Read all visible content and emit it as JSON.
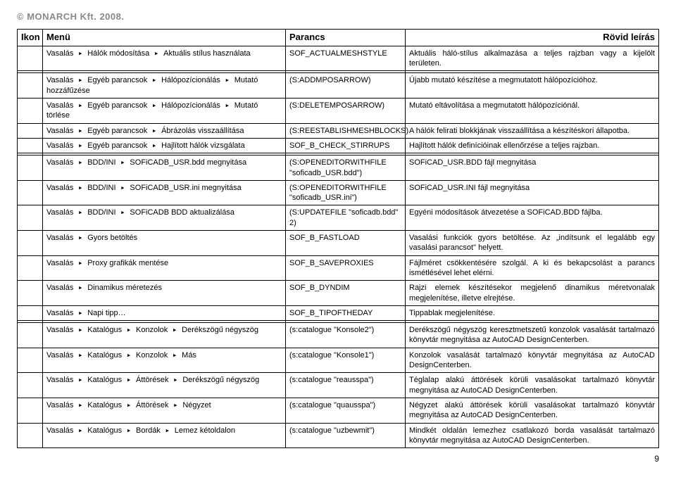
{
  "header": "© MONARCH Kft. 2008.",
  "columns": {
    "icon": "Ikon",
    "menu": "Menü",
    "parancs": "Parancs",
    "leiras": "Rövid leírás"
  },
  "groups": [
    {
      "rows": [
        {
          "menu": "Vasalás ▸ Hálók módosítása ▸ Aktuális stílus használata",
          "parancs": "SOF_ACTUALMESHSTYLE",
          "leiras": "Aktuális háló-stílus alkalmazása a teljes rajzban vagy a kijelölt területen."
        }
      ]
    },
    {
      "rows": [
        {
          "menu": "Vasalás ▸ Egyéb parancsok ▸ Hálópozícionálás ▸ Mutató hozzáfűzése",
          "parancs": "(S:ADDMPOSARROW)",
          "leiras": "Újabb mutató készítése a megmutatott hálópozícióhoz."
        },
        {
          "menu": "Vasalás ▸ Egyéb parancsok ▸ Hálópozícionálás ▸ Mutató törlése",
          "parancs": "(S:DELETEMPOSARROW)",
          "leiras": "Mutató eltávolítása a megmutatott hálópozíciónál."
        },
        {
          "menu": "Vasalás ▸ Egyéb parancsok ▸ Ábrázolás visszaállítása",
          "parancs": "(S:REESTABLISHMESHBLOCKS)",
          "leiras": "A hálók felirati blokkjának visszaállítása a készítéskori állapotba."
        },
        {
          "menu": "Vasalás ▸ Egyéb parancsok ▸ Hajlított hálók vizsgálata",
          "parancs": "SOF_B_CHECK_STIRRUPS",
          "leiras": "Hajlított hálók definícióinak ellenőrzése a teljes rajzban."
        }
      ]
    },
    {
      "rows": [
        {
          "menu": "Vasalás ▸ BDD/INI ▸ SOFiCADB_USR.bdd megnyitása",
          "parancs": "(S:OPENEDITORWITHFILE \"soficadb_USR.bdd\")",
          "leiras": "SOFiCAD_USR.BDD fájl megnyitása"
        },
        {
          "menu": "Vasalás ▸ BDD/INI ▸ SOFiCADB_USR.ini megnyitása",
          "parancs": "(S:OPENEDITORWITHFILE \"soficadb_USR.ini\")",
          "leiras": "SOFiCAD_USR.INI fájl megnyitása"
        },
        {
          "menu": "Vasalás ▸ BDD/INI ▸ SOFiCADB BDD aktualizálása",
          "parancs": "(S:UPDATEFILE \"soficadb.bdd\" 2)",
          "leiras": "Egyéni módosítások átvezetése a SOFiCAD.BDD fájlba."
        },
        {
          "menu": "Vasalás ▸ Gyors betöltés",
          "parancs": "SOF_B_FASTLOAD",
          "leiras": "Vasalási funkciók gyors betöltése. Az „indítsunk el legalább egy vasalási parancsot\" helyett."
        },
        {
          "menu": "Vasalás ▸ Proxy grafikák mentése",
          "parancs": "SOF_B_SAVEPROXIES",
          "leiras": "Fájlméret csökkentésére szolgál. A ki és bekapcsolást a parancs ismétlésével lehet elérni."
        },
        {
          "menu": "Vasalás ▸ Dinamikus méretezés",
          "parancs": "SOF_B_DYNDIM",
          "leiras": "Rajzi elemek készítésekor megjelenő dinamikus méretvonalak megjelenítése, illetve elrejtése."
        },
        {
          "menu": "Vasalás ▸ Napi tipp…",
          "parancs": "SOF_B_TIPOFTHEDAY",
          "leiras": "Tippablak megjelenítése."
        }
      ]
    },
    {
      "rows": [
        {
          "menu": "Vasalás ▸ Katalógus ▸ Konzolok ▸ Derékszögű négyszög",
          "parancs": "(s:catalogue \"Konsole2\")",
          "leiras": "Derékszögű négyszög keresztmetszetű konzolok vasalását tartalmazó könyvtár megnyitása az AutoCAD DesignCenterben."
        },
        {
          "menu": "Vasalás ▸ Katalógus ▸ Konzolok ▸ Más",
          "parancs": "(s:catalogue \"Konsole1\")",
          "leiras": "Konzolok vasalását tartalmazó könyvtár megnyitása az AutoCAD DesignCenterben."
        },
        {
          "menu": "Vasalás ▸ Katalógus ▸ Áttörések ▸ Derékszögű négyszög",
          "parancs": "(s:catalogue \"reausspa\")",
          "leiras": "Téglalap alakú áttörések körüli vasalásokat tartalmazó könyvtár megnyitása az AutoCAD DesignCenterben."
        },
        {
          "menu": "Vasalás ▸ Katalógus ▸ Áttörések ▸ Négyzet",
          "parancs": "(s:catalogue \"quausspa\")",
          "leiras": "Négyzet alakú áttörések körüli vasalásokat tartalmazó könyvtár megnyitása az AutoCAD DesignCenterben."
        },
        {
          "menu": "Vasalás ▸ Katalógus ▸ Bordák ▸ Lemez kétoldalon",
          "parancs": "(s:catalogue \"uzbewmit\")",
          "leiras": "Mindkét oldalán lemezhez csatlakozó borda vasalását tartalmazó könyvtár megnyitása az AutoCAD DesignCenterben."
        }
      ]
    }
  ],
  "pagenum": "9"
}
